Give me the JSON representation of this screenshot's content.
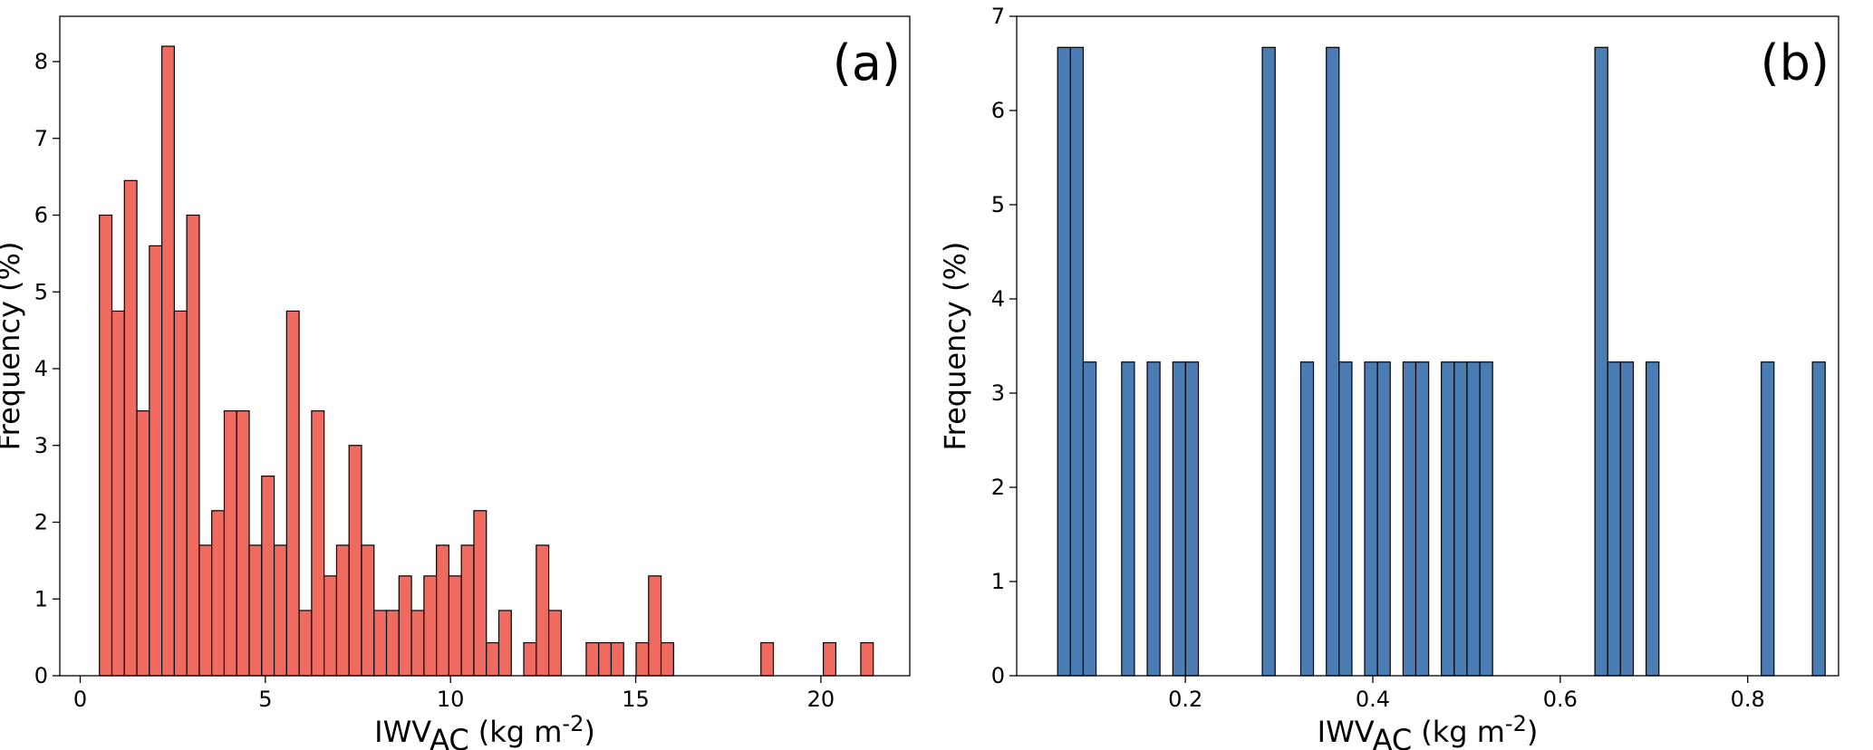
{
  "chart_data": [
    {
      "type": "histogram",
      "annotation": "(a)",
      "ylabel": "Frequency (%)",
      "xlabel": {
        "main": "IWV",
        "sub": "AC",
        "unit": "(kg m",
        "sup": "-2",
        "close": ")"
      },
      "color": "#ef6b60",
      "bins": [
        0.52,
        0.857,
        1.194,
        1.531,
        1.868,
        2.205,
        2.542,
        2.879,
        3.216,
        3.553,
        3.89,
        4.227,
        4.564,
        4.901,
        5.238,
        5.575,
        5.912,
        6.249,
        6.586,
        6.923,
        7.26,
        7.597,
        7.934,
        8.271,
        8.608,
        8.945,
        9.282,
        9.619,
        9.956,
        10.293,
        10.63,
        10.967,
        11.304,
        11.641,
        11.978,
        12.315,
        12.652,
        12.989,
        13.326,
        13.663,
        14.0,
        14.337,
        14.674,
        15.011,
        15.348,
        15.685,
        16.022,
        16.359,
        16.696,
        17.033,
        17.37,
        17.707,
        18.044,
        18.381,
        18.718,
        19.055,
        19.392,
        19.729,
        20.066,
        20.403,
        20.74,
        21.077,
        21.414
      ],
      "values": [
        6.0,
        4.75,
        6.45,
        3.45,
        5.6,
        8.2,
        4.75,
        6.0,
        1.7,
        2.15,
        3.45,
        3.45,
        1.7,
        2.6,
        1.7,
        4.75,
        0.85,
        3.45,
        1.3,
        1.7,
        3.0,
        1.7,
        0.85,
        0.85,
        1.3,
        0.85,
        1.3,
        1.7,
        1.3,
        1.7,
        2.15,
        0.43,
        0.85,
        0,
        0.43,
        1.7,
        0.85,
        0,
        0,
        0.43,
        0.43,
        0.43,
        0,
        0.43,
        1.3,
        0.43,
        0,
        0,
        0,
        0,
        0,
        0,
        0,
        0.43,
        0,
        0,
        0,
        0,
        0.43,
        0,
        0,
        0.43
      ],
      "xlim": [
        -0.55,
        22.4
      ],
      "ylim": [
        0,
        8.59
      ],
      "xticks": [
        0,
        5,
        10,
        15,
        20
      ],
      "yticks": [
        0,
        1,
        2,
        3,
        4,
        5,
        6,
        7,
        8
      ]
    },
    {
      "type": "histogram",
      "annotation": "(b)",
      "ylabel": "Frequency (%)",
      "xlabel": {
        "main": "IWV",
        "sub": "AC",
        "unit": "(kg m",
        "sup": "-2",
        "close": ")"
      },
      "color": "#4a7db4",
      "bins": [
        0.0637,
        0.0774,
        0.091,
        0.1047,
        0.1183,
        0.132,
        0.1456,
        0.1593,
        0.1729,
        0.1866,
        0.2002,
        0.2139,
        0.2275,
        0.2412,
        0.2548,
        0.2685,
        0.2821,
        0.2958,
        0.3094,
        0.3231,
        0.3367,
        0.3504,
        0.364,
        0.3777,
        0.3913,
        0.405,
        0.4186,
        0.4323,
        0.4459,
        0.4596,
        0.4732,
        0.4869,
        0.5005,
        0.5142,
        0.5278,
        0.5415,
        0.5551,
        0.5688,
        0.5824,
        0.5961,
        0.6097,
        0.6234,
        0.637,
        0.6507,
        0.6643,
        0.678,
        0.6916,
        0.7053,
        0.7189,
        0.7326,
        0.7462,
        0.7599,
        0.7735,
        0.7872,
        0.8008,
        0.8145,
        0.8281,
        0.8418,
        0.8554,
        0.8691,
        0.8827
      ],
      "values": [
        6.67,
        6.67,
        3.33,
        0,
        0,
        3.33,
        0,
        3.33,
        0,
        3.33,
        3.33,
        0,
        0,
        0,
        0,
        0,
        6.67,
        0,
        0,
        3.33,
        0,
        6.67,
        3.33,
        0,
        3.33,
        3.33,
        0,
        3.33,
        3.33,
        0,
        3.33,
        3.33,
        3.33,
        3.33,
        0,
        0,
        0,
        0,
        0,
        0,
        0,
        0,
        6.67,
        3.33,
        3.33,
        0,
        3.33,
        0,
        0,
        0,
        0,
        0,
        0,
        0,
        0,
        3.33,
        0,
        0,
        0,
        3.33
      ],
      "xlim": [
        0.02,
        0.897
      ],
      "ylim": [
        0,
        7
      ],
      "xticks": [
        0.2,
        0.4,
        0.6,
        0.8
      ],
      "yticks": [
        0,
        1,
        2,
        3,
        4,
        5,
        6,
        7
      ]
    }
  ]
}
